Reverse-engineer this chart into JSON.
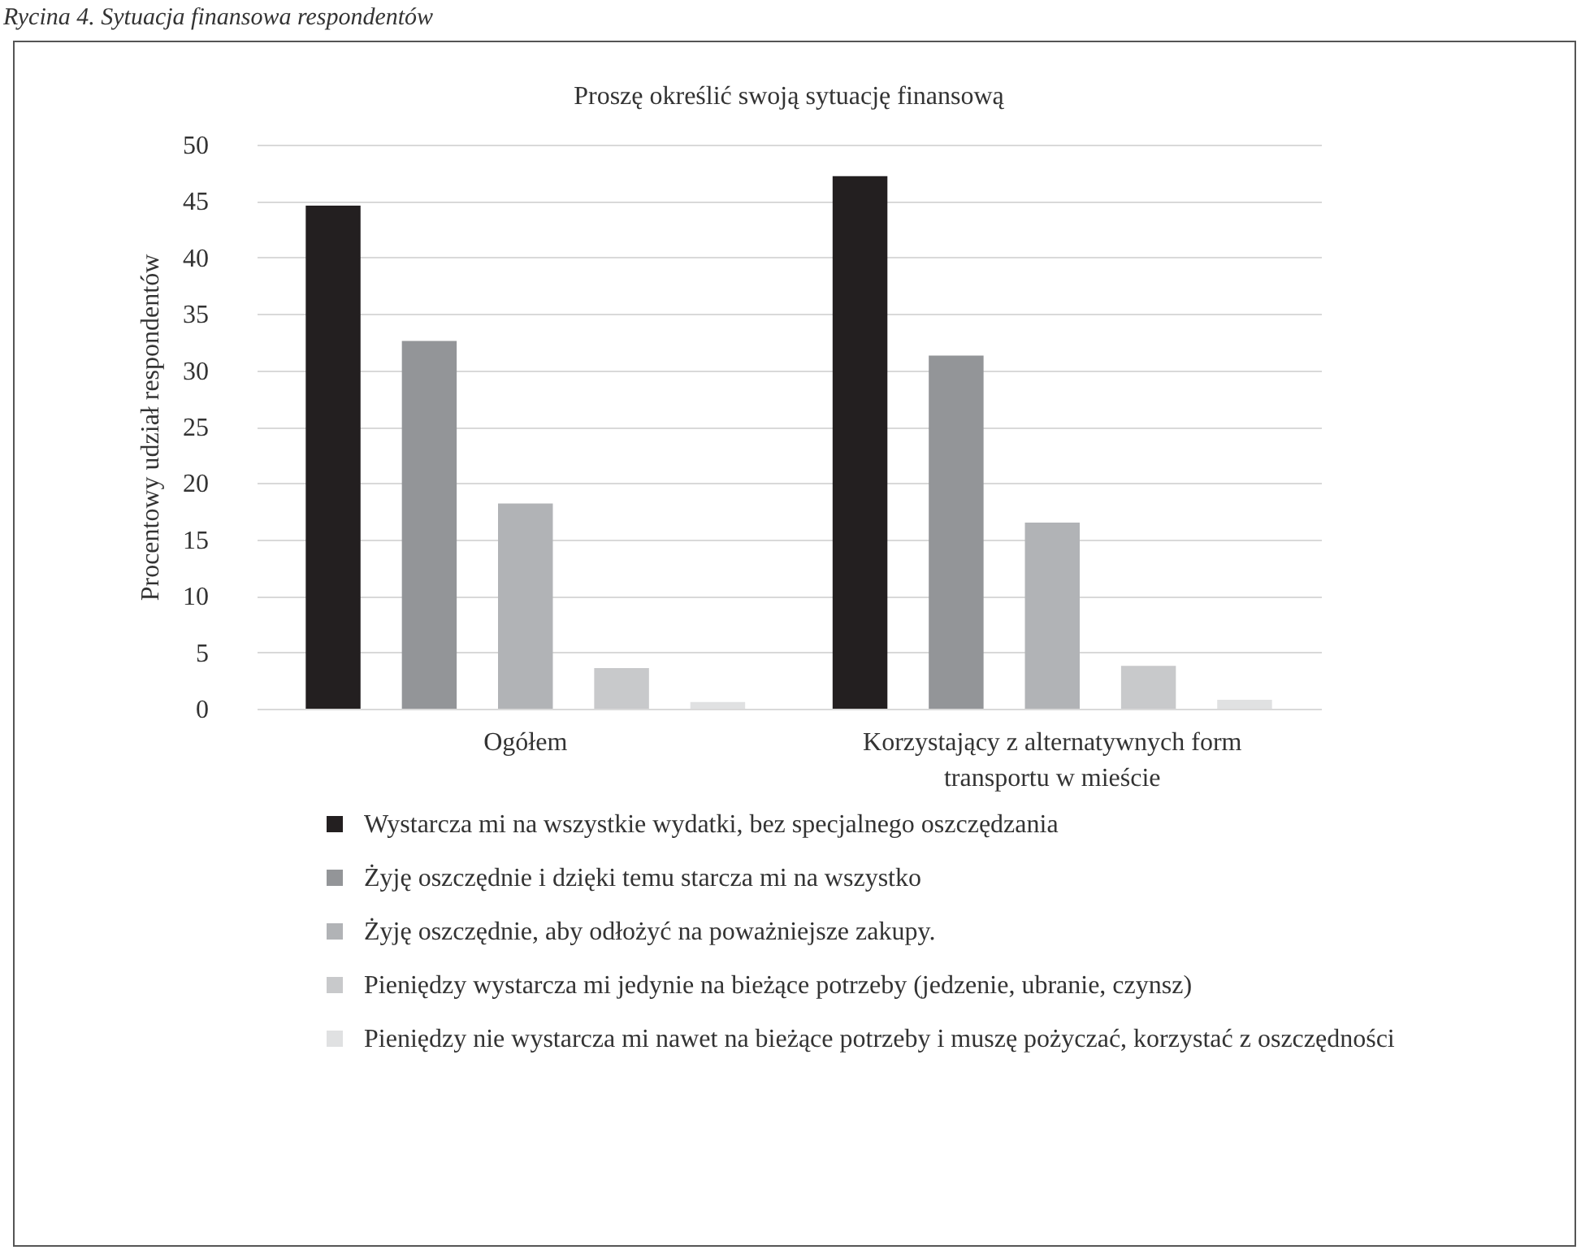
{
  "chart_data": {
    "type": "bar",
    "title": "Proszę określić swoją sytuację finansową",
    "annotations": [
      "Rycina 4. Sytuacja finansowa respondentów"
    ],
    "ylabel": "Procentowy udział respondentów",
    "categories": [
      "Ogółem",
      "Korzystający z alternatywnych form transportu w mieście"
    ],
    "series": [
      {
        "name": "Wystarcza mi na wszystkie wydatki, bez specjalnego oszczędzania",
        "color": "#231f20",
        "values": [
          44.6,
          47.2
        ]
      },
      {
        "name": "Żyję oszczędnie i dzięki temu starcza mi na wszystko",
        "color": "#939598",
        "values": [
          32.6,
          31.3
        ]
      },
      {
        "name": "Żyję oszczędnie, aby odłożyć na poważniejsze zakupy.",
        "color": "#b1b3b6",
        "values": [
          18.2,
          16.5
        ]
      },
      {
        "name": "Pieniędzy wystarcza mi jedynie na bieżące potrzeby (jedzenie, ubranie, czynsz)",
        "color": "#c8c9cb",
        "values": [
          3.6,
          3.8
        ]
      },
      {
        "name": "Pieniędzy nie wystarcza mi nawet na bieżące potrzeby i muszę pożyczać, korzystać z oszczędności",
        "color": "#e0e1e2",
        "values": [
          0.6,
          0.8
        ]
      }
    ],
    "ylim": [
      0,
      50
    ],
    "yticks": [
      0,
      5,
      10,
      15,
      20,
      25,
      30,
      35,
      40,
      45,
      50
    ],
    "grid": "y",
    "legend": "bottom"
  }
}
